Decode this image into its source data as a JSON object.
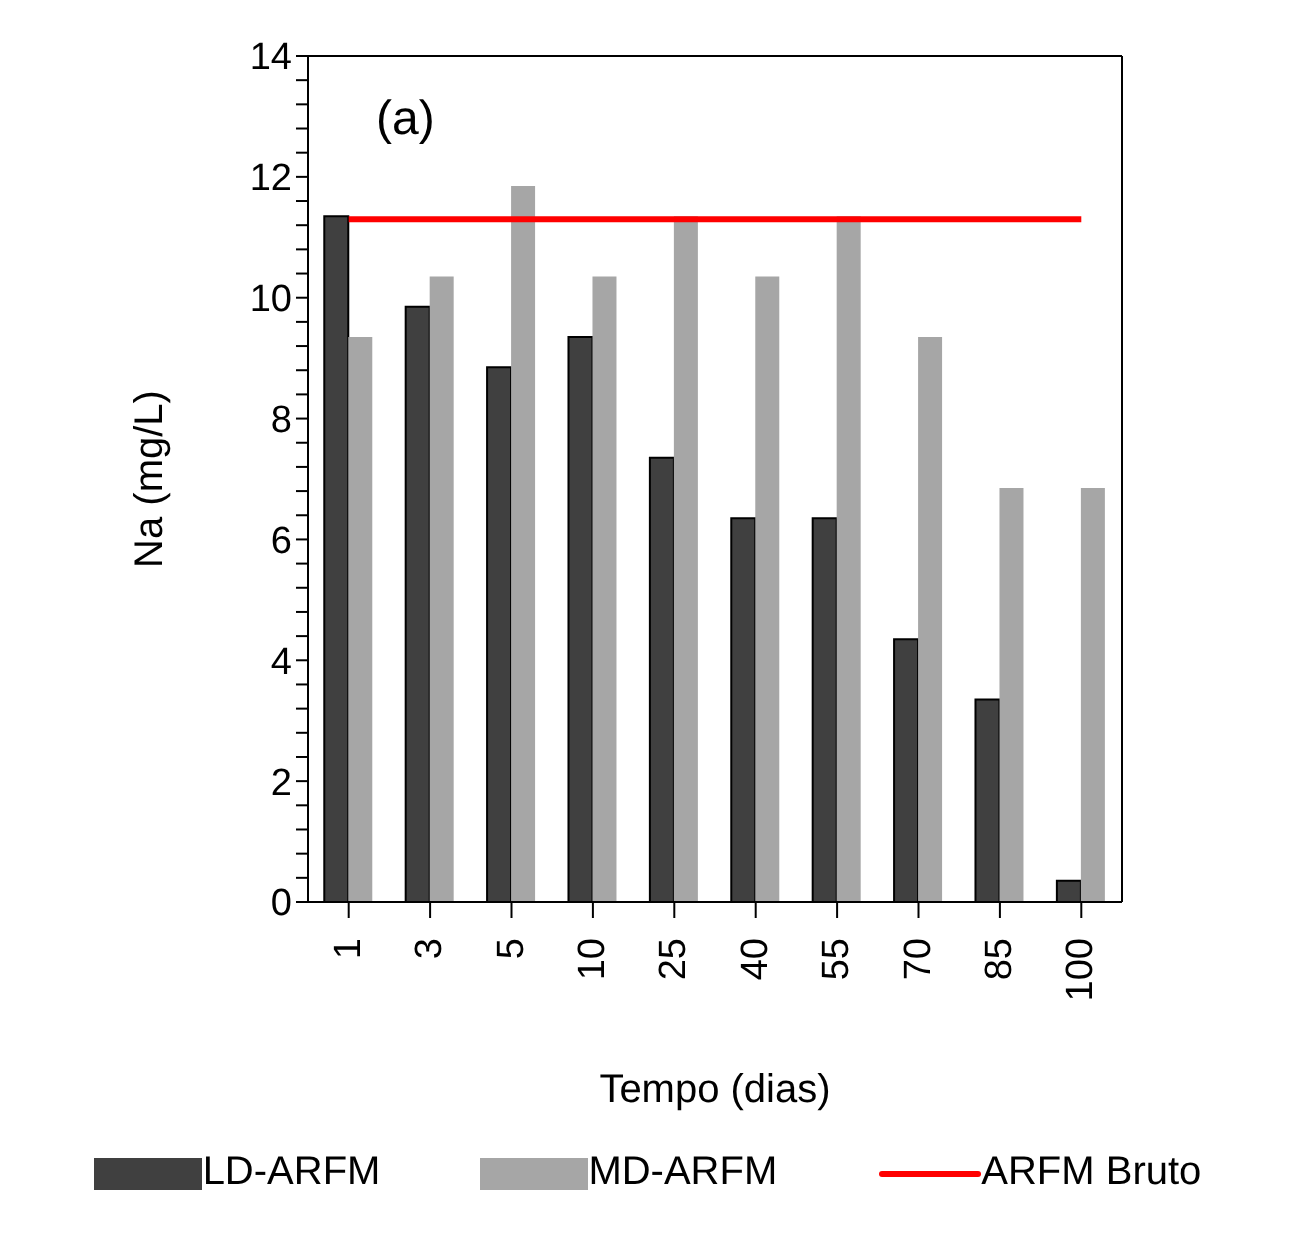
{
  "chart_data": {
    "type": "bar",
    "xlabel": "Tempo (dias)",
    "ylabel": "Na (mg/L)",
    "annotations": [
      "(a)"
    ],
    "categories": [
      "1",
      "3",
      "5",
      "10",
      "25",
      "40",
      "55",
      "70",
      "85",
      "100"
    ],
    "series": [
      {
        "name": "LD-ARFM",
        "color": "#404040",
        "values": [
          11.35,
          9.85,
          8.85,
          9.35,
          7.35,
          6.35,
          6.35,
          4.35,
          3.35,
          0.35
        ]
      },
      {
        "name": "MD-ARFM",
        "color": "#a6a6a6",
        "values": [
          9.35,
          10.35,
          11.85,
          10.35,
          11.35,
          10.35,
          11.35,
          9.35,
          6.85,
          6.85
        ]
      },
      {
        "name": "ARFM Bruto",
        "type": "line",
        "color": "#ff0000",
        "values": [
          11.3,
          11.3,
          11.3,
          11.3,
          11.3,
          11.3,
          11.3,
          11.3,
          11.3,
          11.3
        ]
      }
    ],
    "ylim": [
      0,
      14
    ],
    "yticks": [
      0,
      {
        "value": 0.4,
        "label": null
      },
      {
        "value": 0.8,
        "label": null
      },
      {
        "value": 1.2,
        "label": null
      },
      {
        "value": 1.6,
        "label": null
      },
      2,
      {
        "value": 2.4,
        "label": null
      },
      {
        "value": 2.8,
        "label": null
      },
      {
        "value": 3.2,
        "label": null
      },
      {
        "value": 3.6,
        "label": null
      },
      4,
      {
        "value": 4.4,
        "label": null
      },
      {
        "value": 4.8,
        "label": null
      },
      {
        "value": 5.2,
        "label": null
      },
      {
        "value": 5.6,
        "label": null
      },
      6,
      {
        "value": 6.4,
        "label": null
      },
      {
        "value": 6.8,
        "label": null
      },
      {
        "value": 7.2,
        "label": null
      },
      {
        "value": 7.6,
        "label": null
      },
      8,
      {
        "value": 8.4,
        "label": null
      },
      {
        "value": 8.8,
        "label": null
      },
      {
        "value": 9.2,
        "label": null
      },
      {
        "value": 9.6,
        "label": null
      },
      10,
      {
        "value": 10.4,
        "label": null
      },
      {
        "value": 10.8,
        "label": null
      },
      {
        "value": 11.2,
        "label": null
      },
      {
        "value": 11.6,
        "label": null
      },
      12,
      {
        "value": 12.4,
        "label": null
      },
      {
        "value": 12.8,
        "label": null
      },
      {
        "value": 13.2,
        "label": null
      },
      {
        "value": 13.6,
        "label": null
      },
      14
    ],
    "grid": false,
    "legend": "bottom",
    "marker": "none"
  }
}
